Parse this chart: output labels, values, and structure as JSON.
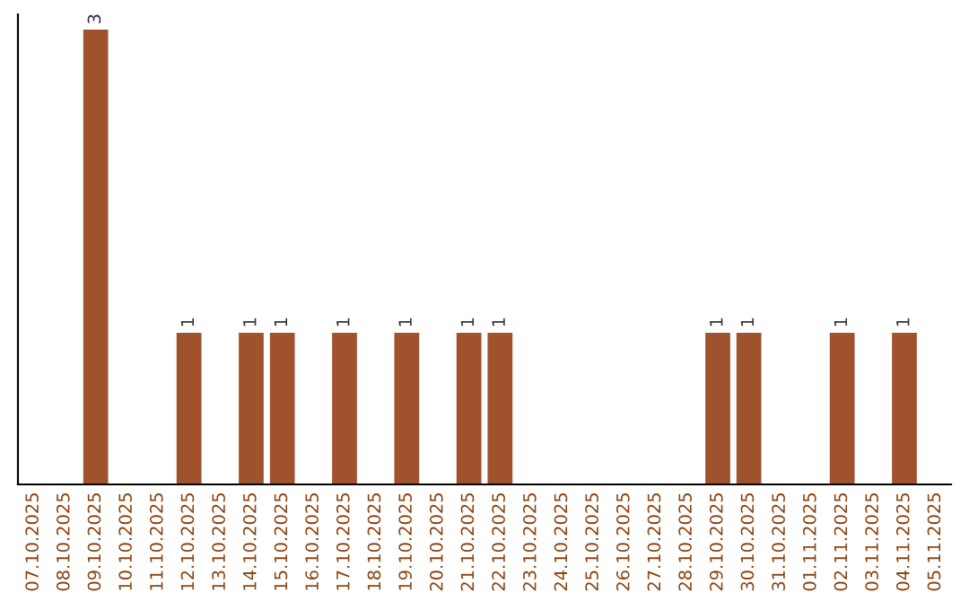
{
  "chart_data": {
    "type": "bar",
    "categories": [
      "07.10.2025",
      "08.10.2025",
      "09.10.2025",
      "10.10.2025",
      "11.10.2025",
      "12.10.2025",
      "13.10.2025",
      "14.10.2025",
      "15.10.2025",
      "16.10.2025",
      "17.10.2025",
      "18.10.2025",
      "19.10.2025",
      "20.10.2025",
      "21.10.2025",
      "22.10.2025",
      "23.10.2025",
      "24.10.2025",
      "25.10.2025",
      "26.10.2025",
      "27.10.2025",
      "28.10.2025",
      "29.10.2025",
      "30.10.2025",
      "31.10.2025",
      "01.11.2025",
      "02.11.2025",
      "03.11.2025",
      "04.11.2025",
      "05.11.2025"
    ],
    "values": [
      0,
      0,
      3,
      0,
      0,
      1,
      0,
      1,
      1,
      0,
      1,
      0,
      1,
      0,
      1,
      1,
      0,
      0,
      0,
      0,
      0,
      0,
      1,
      1,
      0,
      0,
      1,
      0,
      1,
      0
    ],
    "value_labels": [
      null,
      null,
      "3",
      null,
      null,
      "1",
      null,
      "1",
      "1",
      null,
      "1",
      null,
      "1",
      null,
      "1",
      "1",
      null,
      null,
      null,
      null,
      null,
      null,
      "1",
      "1",
      null,
      null,
      "1",
      null,
      "1",
      null
    ],
    "color": "#a0522d",
    "ylim": [
      0,
      3.1
    ],
    "tick_labels": "x",
    "grid": false,
    "legend": false
  }
}
